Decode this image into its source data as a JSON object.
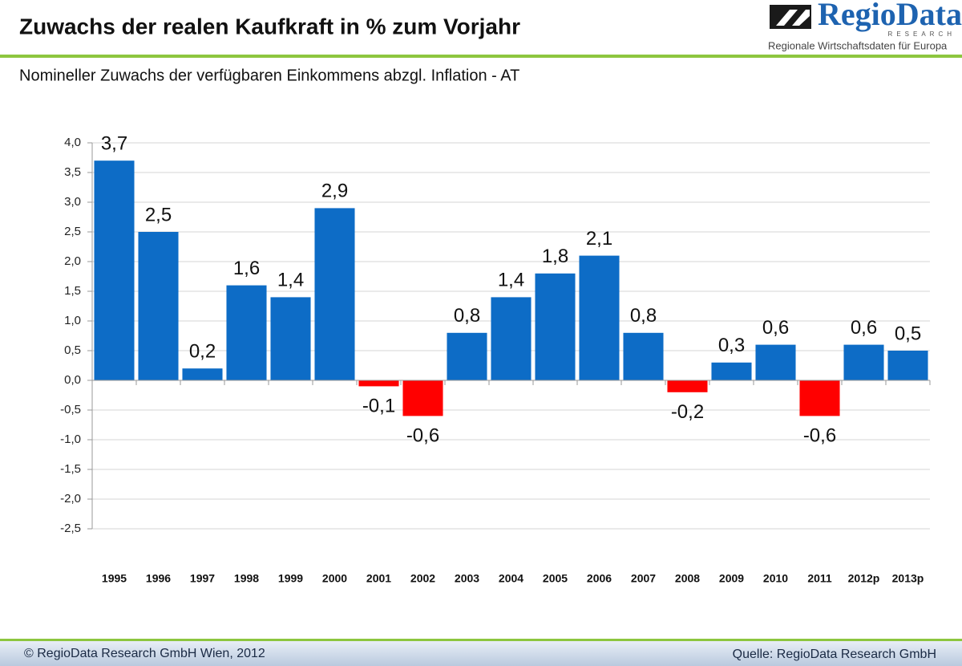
{
  "logo": {
    "name": "RegioData",
    "sub": "RESEARCH",
    "tagline": "Regionale Wirtschaftsdaten für Europa"
  },
  "chart_data": {
    "type": "bar",
    "title": "Zuwachs der realen Kaufkraft in % zum Vorjahr",
    "subtitle": "Nomineller Zuwachs der verfügbaren Einkommens abzgl. Inflation - AT",
    "categories": [
      "1995",
      "1996",
      "1997",
      "1998",
      "1999",
      "2000",
      "2001",
      "2002",
      "2003",
      "2004",
      "2005",
      "2006",
      "2007",
      "2008",
      "2009",
      "2010",
      "2011",
      "2012p",
      "2013p"
    ],
    "values": [
      3.7,
      2.5,
      0.2,
      1.6,
      1.4,
      2.9,
      -0.1,
      -0.6,
      0.8,
      1.4,
      1.8,
      2.1,
      0.8,
      -0.2,
      0.3,
      0.6,
      -0.6,
      0.6,
      0.5
    ],
    "value_labels": [
      "3,7",
      "2,5",
      "0,2",
      "1,6",
      "1,4",
      "2,9",
      "-0,1",
      "-0,6",
      "0,8",
      "1,4",
      "1,8",
      "2,1",
      "0,8",
      "-0,2",
      "0,3",
      "0,6",
      "-0,6",
      "0,6",
      "0,5"
    ],
    "color": "#0d6cc6",
    "negative_color": "#ff0000",
    "ylim": [
      -2.5,
      4
    ],
    "yticks": [
      {
        "value": -2.5,
        "label": "-2,5"
      },
      {
        "value": -2,
        "label": "-2,0"
      },
      {
        "value": -1.5,
        "label": "-1,5"
      },
      {
        "value": -1,
        "label": "-1,0"
      },
      {
        "value": -0.5,
        "label": "-0,5"
      },
      {
        "value": 0,
        "label": "0,0"
      },
      {
        "value": 0.5,
        "label": "0,5"
      },
      {
        "value": 1,
        "label": "1,0"
      },
      {
        "value": 1.5,
        "label": "1,5"
      },
      {
        "value": 2,
        "label": "2,0"
      },
      {
        "value": 2.5,
        "label": "2,5"
      },
      {
        "value": 3,
        "label": "3,0"
      },
      {
        "value": 3.5,
        "label": "3,5"
      },
      {
        "value": 4,
        "label": "4,0"
      }
    ],
    "grid": true
  },
  "footer": {
    "left": "© RegioData Research GmbH Wien, 2012",
    "right": "Quelle: RegioData Research GmbH"
  }
}
